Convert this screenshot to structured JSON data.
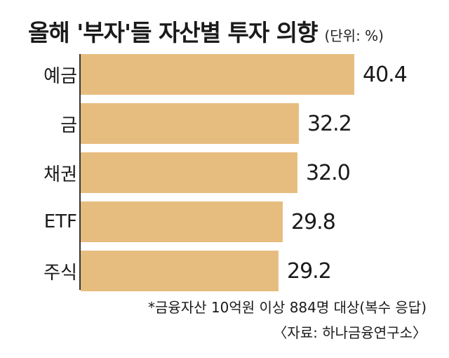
{
  "chart_data": {
    "type": "bar",
    "orientation": "horizontal",
    "title": "올해 '부자'들 자산별 투자 의향",
    "unit_note": "(단위: %)",
    "categories": [
      "예금",
      "금",
      "채권",
      "ETF",
      "주식"
    ],
    "values": [
      40.4,
      32.2,
      32.0,
      29.8,
      29.2
    ],
    "value_labels": [
      "40.4",
      "32.2",
      "32.0",
      "29.8",
      "29.2"
    ],
    "xlim": [
      0,
      40.4
    ],
    "bar_color": "#e7bd7f",
    "grid": false,
    "legend": "none",
    "notes": [
      "*금융자산 10억원 이상 884명 대상(복수 응답)",
      "〈자료: 하나금융연구소〉"
    ]
  }
}
